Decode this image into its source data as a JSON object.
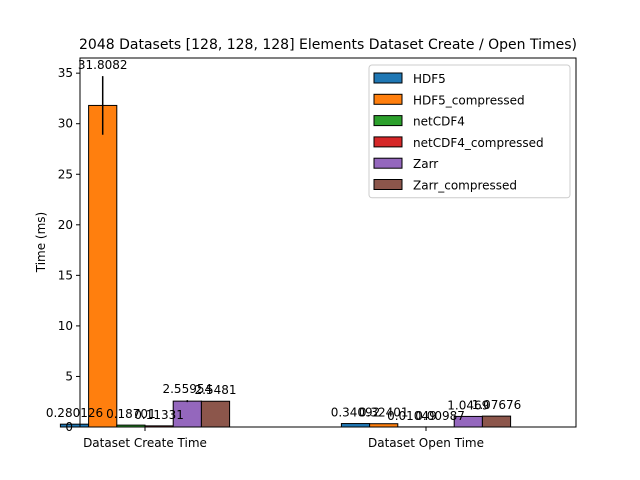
{
  "chart_data": {
    "type": "bar",
    "title": "2048 Datasets [128, 128, 128] Elements Dataset Create / Open Times)",
    "xlabel": "",
    "ylabel": "Time (ms)",
    "ylim": [
      0,
      36.5
    ],
    "yticks": [
      0,
      5,
      10,
      15,
      20,
      25,
      30,
      35
    ],
    "categories": [
      "Dataset Create Time",
      "Dataset Open Time"
    ],
    "series": [
      {
        "name": "HDF5",
        "color": "#1f77b4",
        "values": [
          0.280126,
          0.34092
        ],
        "labels": [
          "0.280126",
          "0.34092"
        ],
        "errors": [
          0,
          0
        ]
      },
      {
        "name": "HDF5_compressed",
        "color": "#ff7f0e",
        "values": [
          31.8082,
          0.32401
        ],
        "labels": [
          "31.8082",
          "0.32401"
        ],
        "errors": [
          2.9,
          0
        ]
      },
      {
        "name": "netCDF4",
        "color": "#2ca02c",
        "values": [
          0.18701,
          0.01049
        ],
        "labels": [
          "0.18701",
          "0.01049"
        ],
        "errors": [
          0,
          0
        ]
      },
      {
        "name": "netCDF4_compressed",
        "color": "#d62728",
        "values": [
          0.11331,
          0.00987
        ],
        "labels": [
          "0.11331",
          "0.00987"
        ],
        "errors": [
          0,
          0
        ]
      },
      {
        "name": "Zarr",
        "color": "#9467bd",
        "values": [
          2.55954,
          1.0469
        ],
        "labels": [
          "2.55954",
          "1.0469"
        ],
        "errors": [
          0.1,
          0
        ]
      },
      {
        "name": "Zarr_compressed",
        "color": "#8c564b",
        "values": [
          2.5481,
          1.07676
        ],
        "labels": [
          "2.5481",
          "1.07676"
        ],
        "errors": [
          0,
          0
        ]
      }
    ],
    "grid": false,
    "legend": "top-right"
  }
}
